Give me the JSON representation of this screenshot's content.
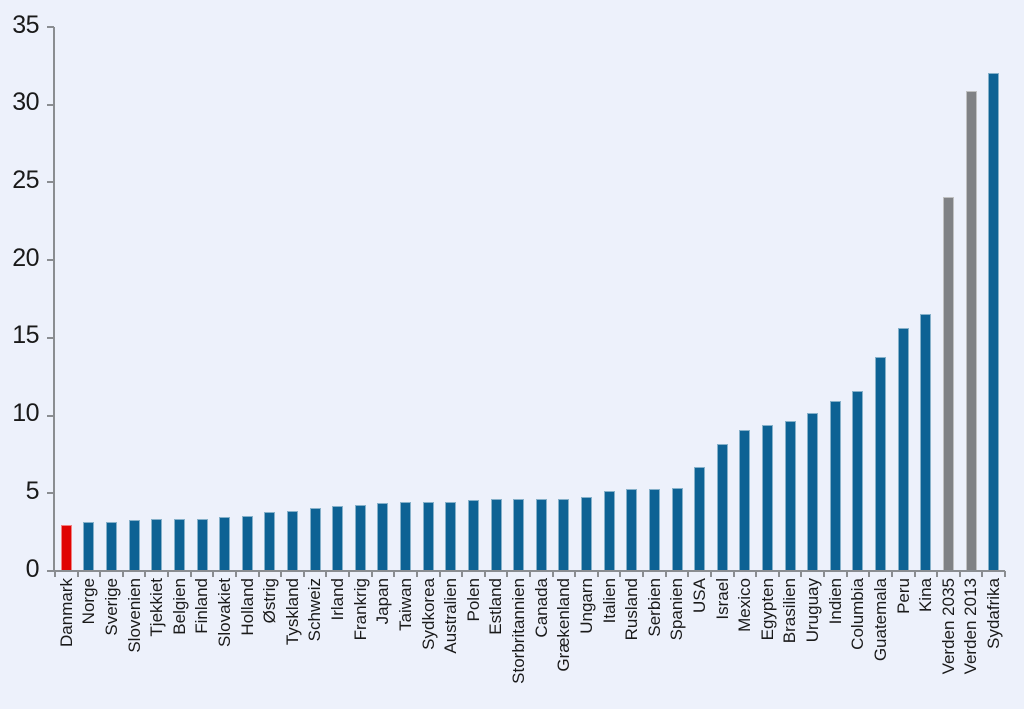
{
  "page": {
    "background_color": "#edf1fb",
    "axis_color": "#8a8d91",
    "text_color": "#1a1a1a"
  },
  "chart_data": {
    "type": "bar",
    "title": "",
    "xlabel": "",
    "ylabel": "",
    "grid": false,
    "legend": false,
    "ylim": [
      0,
      35
    ],
    "y_ticks": [
      0,
      5,
      10,
      15,
      20,
      25,
      30,
      35
    ],
    "categories": [
      "Danmark",
      "Norge",
      "Sverige",
      "Slovenien",
      "Tjekkiet",
      "Belgien",
      "Finland",
      "Slovakiet",
      "Holland",
      "Østrig",
      "Tyskland",
      "Schweiz",
      "Irland",
      "Frankrig",
      "Japan",
      "Taiwan",
      "Sydkorea",
      "Australien",
      "Polen",
      "Estland",
      "Storbritannien",
      "Canada",
      "Grækenland",
      "Ungarn",
      "Italien",
      "Rusland",
      "Serbien",
      "Spanien",
      "USA",
      "Israel",
      "Mexico",
      "Egypten",
      "Brasilien",
      "Uruguay",
      "Indien",
      "Columbia",
      "Guatemala",
      "Peru",
      "Kina",
      "Verden 2035",
      "Verden 2013",
      "Sydafrika"
    ],
    "values": [
      2.9,
      3.1,
      3.1,
      3.2,
      3.3,
      3.3,
      3.3,
      3.4,
      3.5,
      3.7,
      3.8,
      4.0,
      4.1,
      4.2,
      4.3,
      4.4,
      4.4,
      4.4,
      4.5,
      4.6,
      4.6,
      4.6,
      4.6,
      4.7,
      5.1,
      5.2,
      5.2,
      5.3,
      6.6,
      8.1,
      9.0,
      9.3,
      9.6,
      10.1,
      10.9,
      11.5,
      13.7,
      15.6,
      16.5,
      24.0,
      30.8,
      32.0
    ],
    "color_roles": [
      "highlight",
      "default",
      "default",
      "default",
      "default",
      "default",
      "default",
      "default",
      "default",
      "default",
      "default",
      "default",
      "default",
      "default",
      "default",
      "default",
      "default",
      "default",
      "default",
      "default",
      "default",
      "default",
      "default",
      "default",
      "default",
      "default",
      "default",
      "default",
      "default",
      "default",
      "default",
      "default",
      "default",
      "default",
      "default",
      "default",
      "default",
      "default",
      "default",
      "world",
      "world",
      "default"
    ],
    "colors": {
      "default": "#0d6294",
      "highlight": "#e00302",
      "world": "#808285"
    }
  }
}
